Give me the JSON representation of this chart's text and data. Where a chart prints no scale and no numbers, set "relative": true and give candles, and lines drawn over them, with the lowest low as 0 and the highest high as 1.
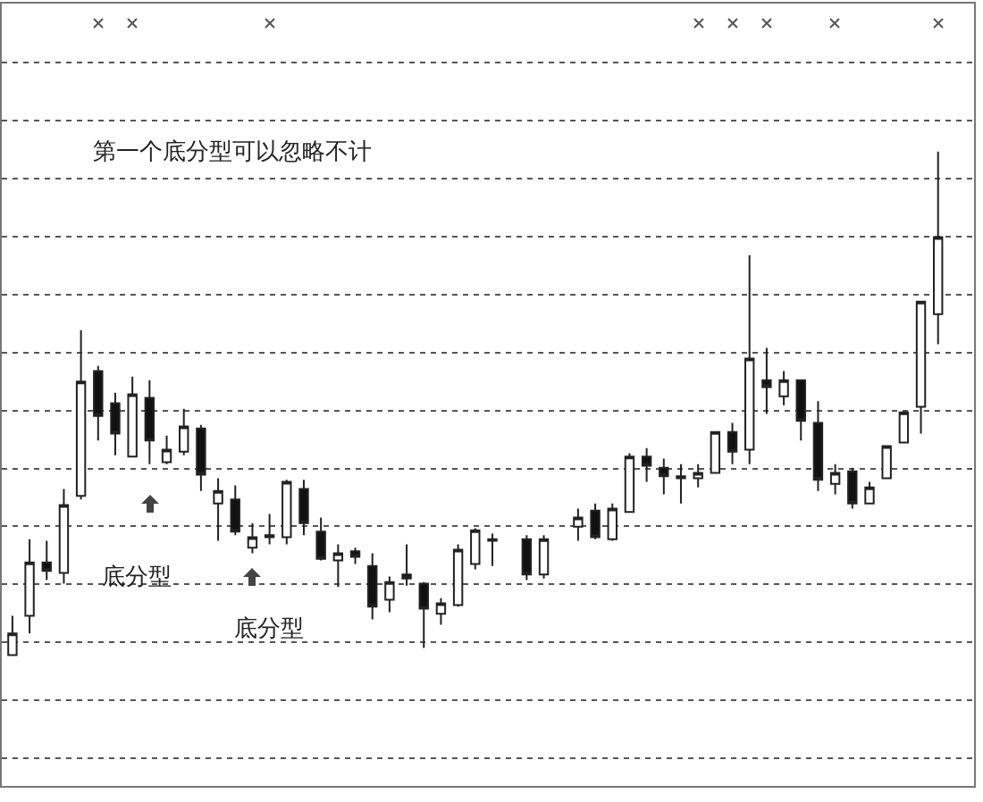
{
  "chart_data": {
    "type": "candlestick",
    "relative": true,
    "grid": "y",
    "categories": [
      null,
      null,
      null,
      null,
      null,
      null,
      null,
      null,
      null,
      null,
      null,
      null,
      null,
      null,
      null,
      null,
      null,
      null,
      null,
      null,
      null,
      null,
      null,
      null,
      null,
      null,
      null,
      null,
      null,
      null,
      null,
      null,
      null,
      null,
      null,
      null,
      null,
      null,
      null,
      null,
      null,
      null,
      null,
      null,
      null,
      null,
      null,
      null,
      null,
      null,
      null,
      null,
      null,
      null,
      null
    ],
    "ohlc": [
      [
        0,
        0.078,
        0,
        0.043
      ],
      [
        0.078,
        0.23,
        0.043,
        0.184
      ],
      [
        0.184,
        0.227,
        0.149,
        0.167
      ],
      [
        0.163,
        0.33,
        0.142,
        0.298
      ],
      [
        0.316,
        0.645,
        0.309,
        0.543
      ],
      [
        0.564,
        0.574,
        0.426,
        0.475
      ],
      [
        0.5,
        0.521,
        0.397,
        0.44
      ],
      [
        0.394,
        0.553,
        0.394,
        0.518
      ],
      [
        0.511,
        0.546,
        0.379,
        0.426
      ],
      [
        0.383,
        0.436,
        0.379,
        0.408
      ],
      [
        0.404,
        0.489,
        0.397,
        0.454
      ],
      [
        0.45,
        0.457,
        0.326,
        0.358
      ],
      [
        0.301,
        0.351,
        0.227,
        0.326
      ],
      [
        0.309,
        0.337,
        0.238,
        0.245
      ],
      [
        0.213,
        0.262,
        0.202,
        0.234
      ],
      [
        0.234,
        0.28,
        0.22,
        0.238
      ],
      [
        0.234,
        0.348,
        0.22,
        0.344
      ],
      [
        0.33,
        0.348,
        0.238,
        0.262
      ],
      [
        0.245,
        0.273,
        0.188,
        0.191
      ],
      [
        0.188,
        0.22,
        0.135,
        0.202
      ],
      [
        0.206,
        0.213,
        0.181,
        0.195
      ],
      [
        0.177,
        0.202,
        0.071,
        0.096
      ],
      [
        0.11,
        0.156,
        0.085,
        0.145
      ],
      [
        0.16,
        0.22,
        0.138,
        0.152
      ],
      [
        0.142,
        0.145,
        0.014,
        0.092
      ],
      [
        0.082,
        0.113,
        0.06,
        0.103
      ],
      [
        0.099,
        0.22,
        0.096,
        0.209
      ],
      [
        0.181,
        0.252,
        0.17,
        0.248
      ],
      [
        0.23,
        0.241,
        0.177,
        0.227
      ],
      null,
      [
        0.23,
        0.238,
        0.149,
        0.16
      ],
      [
        0.16,
        0.238,
        0.152,
        0.23
      ],
      null,
      [
        0.255,
        0.291,
        0.227,
        0.273
      ],
      [
        0.287,
        0.301,
        0.23,
        0.234
      ],
      [
        0.23,
        0.301,
        0.227,
        0.291
      ],
      [
        0.284,
        0.401,
        0.284,
        0.394
      ],
      [
        0.394,
        0.411,
        0.344,
        0.376
      ],
      [
        0.372,
        0.39,
        0.319,
        0.355
      ],
      [
        0.355,
        0.379,
        0.301,
        0.351
      ],
      [
        0.351,
        0.379,
        0.333,
        0.362
      ],
      [
        0.362,
        0.443,
        0.362,
        0.443
      ],
      [
        0.443,
        0.461,
        0.379,
        0.404
      ],
      [
        0.408,
        0.794,
        0.379,
        0.589
      ],
      [
        0.546,
        0.61,
        0.479,
        0.532
      ],
      [
        0.514,
        0.564,
        0.496,
        0.546
      ],
      [
        0.546,
        0.546,
        0.426,
        0.465
      ],
      [
        0.461,
        0.504,
        0.326,
        0.348
      ],
      [
        0.34,
        0.379,
        0.319,
        0.362
      ],
      [
        0.365,
        0.372,
        0.291,
        0.301
      ],
      [
        0.301,
        0.344,
        0.301,
        0.333
      ],
      [
        0.351,
        0.415,
        0.351,
        0.415
      ],
      [
        0.422,
        0.482,
        0.422,
        0.482
      ],
      [
        0.493,
        0.702,
        0.44,
        0.702
      ],
      [
        0.677,
        1,
        0.617,
        0.83
      ]
    ],
    "annotations": [
      "第一个底分型可以忽略不计",
      "底分型",
      "底分型"
    ]
  }
}
